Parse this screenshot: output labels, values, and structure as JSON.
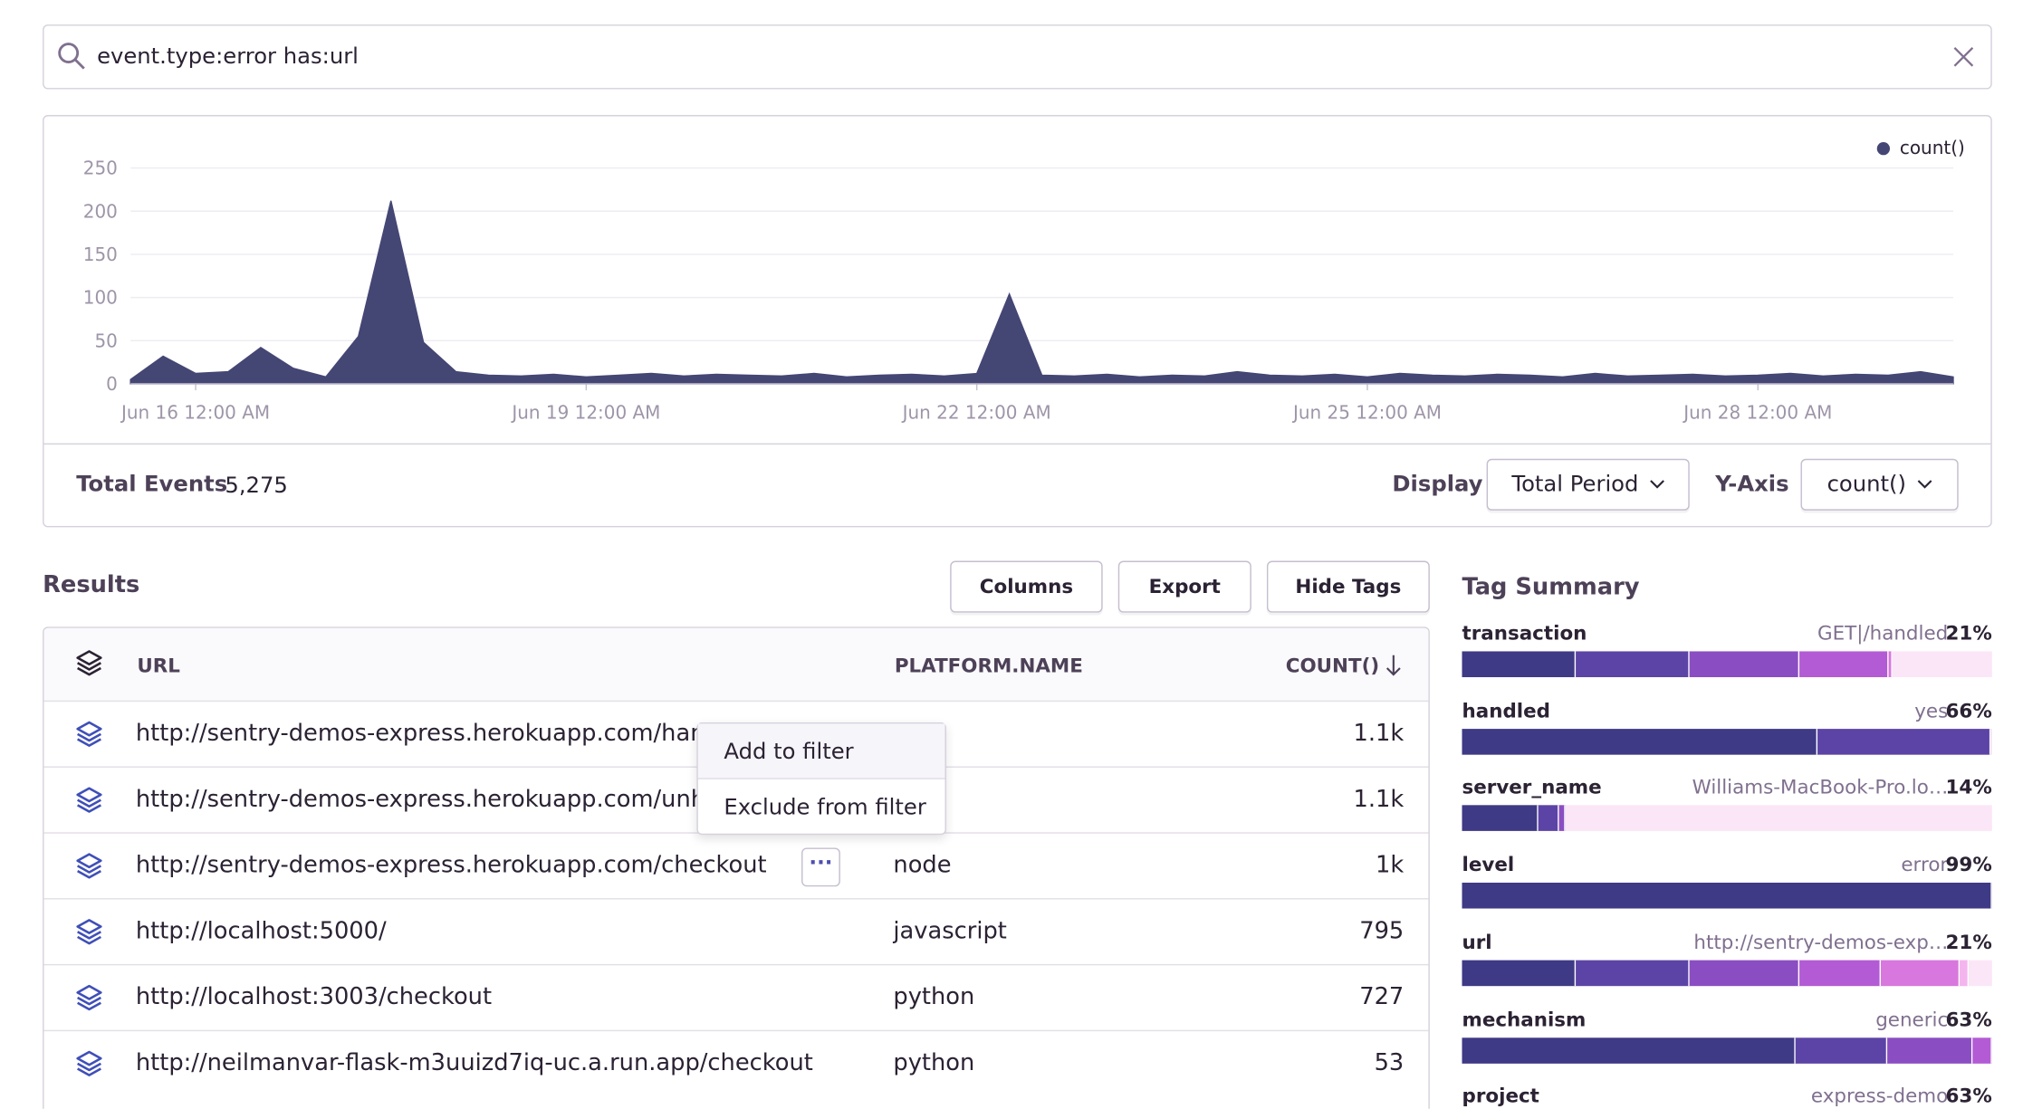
{
  "search": {
    "query": "event.type:error has:url"
  },
  "chart_data": {
    "type": "area",
    "series": [
      {
        "name": "count()",
        "color": "#444674",
        "values": [
          5,
          32,
          12,
          14,
          42,
          18,
          8,
          55,
          212,
          48,
          14,
          10,
          9,
          11,
          8,
          10,
          12,
          9,
          11,
          10,
          9,
          12,
          8,
          10,
          11,
          9,
          12,
          104,
          10,
          9,
          11,
          8,
          10,
          9,
          14,
          10,
          9,
          11,
          8,
          12,
          10,
          9,
          11,
          10,
          8,
          12,
          9,
          10,
          11,
          9,
          10,
          12,
          9,
          11,
          10,
          14,
          8
        ]
      }
    ],
    "categories": [
      null,
      null,
      "Jun 16 12:00 AM",
      null,
      null,
      null,
      null,
      null,
      null,
      null,
      null,
      null,
      null,
      null,
      "Jun 19 12:00 AM",
      null,
      null,
      null,
      null,
      null,
      null,
      null,
      null,
      null,
      null,
      null,
      "Jun 22 12:00 AM",
      null,
      null,
      null,
      null,
      null,
      null,
      null,
      null,
      null,
      null,
      null,
      "Jun 25 12:00 AM",
      null,
      null,
      null,
      null,
      null,
      null,
      null,
      null,
      null,
      null,
      null,
      "Jun 28 12:00 AM",
      null,
      null,
      null,
      null,
      null,
      null
    ],
    "ylim": [
      0,
      250
    ],
    "yticks": [
      0,
      50,
      100,
      150,
      200,
      250
    ],
    "grid": true,
    "legend": "top-right"
  },
  "summary": {
    "total_label": "Total Events",
    "total": "5,275",
    "display_label": "Display",
    "display_value": "Total Period",
    "yaxis_label": "Y-Axis",
    "yaxis_value": "count()"
  },
  "results": {
    "title": "Results",
    "buttons": [
      "Columns",
      "Export",
      "Hide Tags"
    ],
    "headers": [
      "URL",
      "PLATFORM.NAME",
      "COUNT()"
    ],
    "rows": [
      {
        "url": "http://sentry-demos-express.herokuapp.com/handle",
        "count": "1.1k"
      },
      {
        "url": "http://sentry-demos-express.herokuapp.com/unhan",
        "count": "1.1k"
      },
      {
        "url": "http://sentry-demos-express.herokuapp.com/checkout",
        "platform": "node",
        "count": "1k"
      },
      {
        "url": "http://localhost:5000/",
        "platform": "javascript",
        "count": 795
      },
      {
        "url": "http://localhost:3003/checkout",
        "platform": "python",
        "count": 727
      },
      {
        "url": "http://neilmanvar-flask-m3uuizd7iq-uc.a.run.app/checkout",
        "platform": "python",
        "count": 53
      }
    ]
  },
  "context_menu": [
    "Add to filter",
    "Exclude from filter"
  ],
  "tag_summary": {
    "title": "Tag Summary",
    "tags": [
      {
        "name": "transaction",
        "value": "GET|/handled",
        "percent": "21%"
      },
      {
        "name": "handled",
        "value": "yes",
        "percent": "66%"
      },
      {
        "name": "server_name",
        "value": "Williams-MacBook-Pro.lo…",
        "percent": "14%"
      },
      {
        "name": "level",
        "value": "error",
        "percent": "99%"
      },
      {
        "name": "url",
        "value": "http://sentry-demos-exp…",
        "percent": "21%"
      },
      {
        "name": "mechanism",
        "value": "generic",
        "percent": "63%"
      },
      {
        "name": "project",
        "value": "express-demo",
        "percent": "63%"
      }
    ]
  }
}
